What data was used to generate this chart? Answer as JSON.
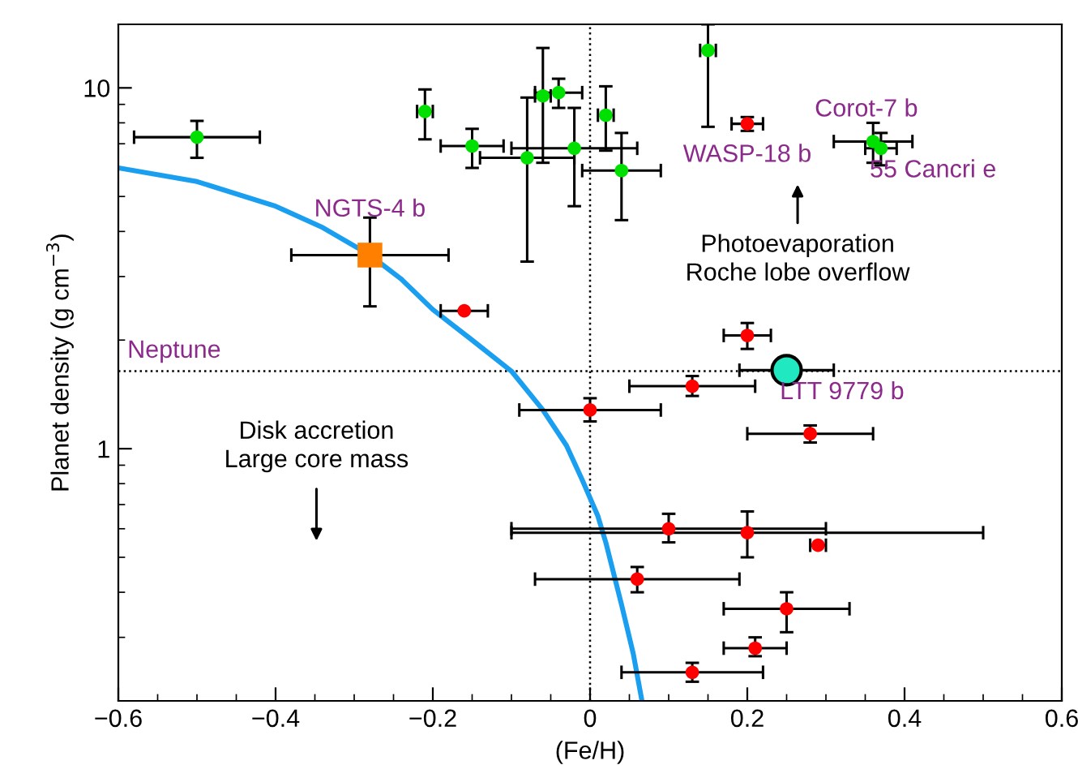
{
  "chart_data": {
    "type": "scatter",
    "xlabel": "(Fe/H)",
    "ylabel": "Planet density (g cm$^{−3}$)",
    "log": "y",
    "xlim": [
      -0.6,
      0.6
    ],
    "ylim": [
      0.2,
      15
    ],
    "xticks": [
      {
        "value": -0.6,
        "label": "−0.6"
      },
      {
        "value": -0.4,
        "label": "−0.4"
      },
      {
        "value": -0.2,
        "label": "−0.2"
      },
      0,
      0.2,
      0.4,
      0.6
    ],
    "yticks": [
      1,
      10
    ],
    "grid": false,
    "legend": false,
    "series": [
      {
        "type": "line",
        "color": "#1a9ff0",
        "marker": "none",
        "line_style": "solid",
        "x": [
          -0.6,
          -0.5,
          -0.4,
          -0.34,
          -0.28,
          -0.24,
          -0.2,
          -0.15,
          -0.1,
          -0.06,
          -0.03,
          -0.01,
          0.01,
          0.02,
          0.04,
          0.055,
          0.066
        ],
        "values": [
          6.0,
          5.5,
          4.7,
          4.1,
          3.44,
          2.95,
          2.43,
          2.0,
          1.64,
          1.28,
          1.02,
          0.82,
          0.65,
          0.55,
          0.37,
          0.27,
          0.2
        ]
      },
      {
        "color": "#00e000",
        "marker": "circle",
        "x": [
          -0.5,
          -0.21,
          -0.15,
          -0.08,
          -0.06,
          -0.04,
          -0.02,
          0.02,
          0.04,
          0.15,
          0.36,
          0.37
        ],
        "values": [
          7.3,
          8.6,
          6.9,
          6.4,
          9.5,
          9.7,
          6.8,
          8.4,
          5.9,
          12.7,
          7.1,
          6.8
        ],
        "errors": [
          [
            6.4,
            8.1
          ],
          [
            7.2,
            9.9
          ],
          [
            6.0,
            7.7
          ],
          [
            3.3,
            9.4
          ],
          [
            6.2,
            12.9
          ],
          [
            8.8,
            10.6
          ],
          [
            4.7,
            8.8
          ],
          [
            6.7,
            10.1
          ],
          [
            4.3,
            7.5
          ],
          [
            7.8,
            15
          ],
          [
            6.2,
            8.0
          ],
          [
            6.1,
            7.5
          ]
        ],
        "xerrors": [
          0.08,
          0.01,
          0.04,
          0.06,
          0.01,
          0.03,
          0.08,
          0.01,
          0.05,
          0.01,
          0.05,
          0.02
        ]
      },
      {
        "color": "#ff0000",
        "marker": "circle",
        "x": [
          0.2,
          -0.16,
          0.2,
          0.13,
          0.0,
          0.28,
          0.1,
          0.2,
          0.29,
          0.06,
          0.25,
          0.21,
          0.13
        ],
        "values": [
          7.95,
          2.41,
          2.06,
          1.49,
          1.28,
          1.1,
          0.6,
          0.585,
          0.54,
          0.435,
          0.36,
          0.28,
          0.24
        ],
        "errors": [
          [
            7.6,
            8.3
          ],
          null,
          [
            1.89,
            2.23
          ],
          [
            1.4,
            1.59
          ],
          [
            1.19,
            1.38
          ],
          [
            1.04,
            1.16
          ],
          [
            0.55,
            0.66
          ],
          [
            0.5,
            0.67
          ],
          null,
          [
            0.4,
            0.47
          ],
          [
            0.31,
            0.4
          ],
          [
            0.266,
            0.3
          ],
          [
            0.226,
            0.255
          ]
        ],
        "xerrors": [
          0.02,
          0.03,
          0.03,
          0.08,
          0.09,
          0.08,
          0.2,
          0.3,
          0.01,
          0.13,
          0.08,
          0.04,
          0.09
        ]
      },
      {
        "color": "#ff8000",
        "marker": "square",
        "x": [
          -0.28
        ],
        "values": [
          3.44
        ],
        "errors": [
          [
            2.48,
            4.37
          ]
        ],
        "xerrors": [
          0.1
        ]
      },
      {
        "color": "#20e8c0",
        "marker": "circle",
        "x": [
          0.25
        ],
        "values": [
          1.65
        ],
        "errors": [
          null
        ],
        "xerrors": [
          0.06
        ]
      }
    ],
    "ref_lines": [
      {
        "axis": "y",
        "value": 1.64,
        "label": "Neptune",
        "color": "#000000",
        "line_style": "dotted"
      },
      {
        "axis": "x",
        "value": 0,
        "color": "#000000",
        "line_style": "dotted"
      }
    ],
    "annotations": [
      {
        "text": "NGTS-4 b",
        "x": -0.28,
        "y": 3.44
      },
      {
        "text": "WASP-18 b",
        "x": 0.2,
        "y": 7.95
      },
      {
        "text": "Corot-7 b",
        "x": 0.36,
        "y": 7.1
      },
      {
        "text": "55 Cancri e",
        "x": 0.37,
        "y": 6.8
      },
      {
        "text": "LTT 9779 b",
        "x": 0.25,
        "y": 1.65
      },
      "Photoevaporation\nRoche lobe overflow",
      "Disk accretion\nLarge core mass"
    ]
  }
}
